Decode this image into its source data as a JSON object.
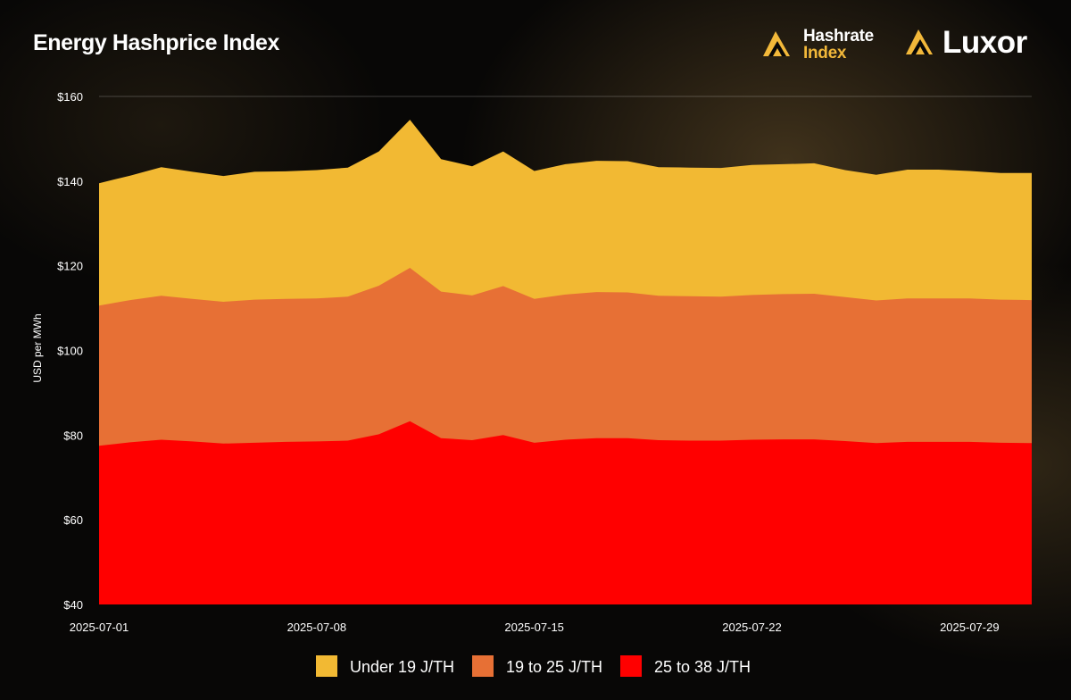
{
  "title": "Energy Hashprice Index",
  "brands": {
    "hashrate_index_line1": "Hashrate",
    "hashrate_index_line2": "Index",
    "luxor": "Luxor"
  },
  "colors": {
    "background": "#080706",
    "under_19": "#f2b933",
    "from_19_to_25": "#e77035",
    "from_25_to_38": "#ff0000",
    "brand_accent": "#f2b83a"
  },
  "chart_data": {
    "type": "area",
    "stacked": false,
    "title": "Energy Hashprice Index",
    "ylabel": "USD per MWh",
    "xlabel": "",
    "ylim": [
      40,
      160
    ],
    "yticks": [
      40,
      60,
      80,
      100,
      120,
      140,
      160
    ],
    "ytick_labels": [
      "$40",
      "$60",
      "$80",
      "$100",
      "$120",
      "$140",
      "$160"
    ],
    "xtick_labels": [
      "2025-07-01",
      "2025-07-08",
      "2025-07-15",
      "2025-07-22",
      "2025-07-29"
    ],
    "legend_position": "bottom-center",
    "grid": "top-line-only",
    "x": [
      "2025-07-01",
      "2025-07-02",
      "2025-07-03",
      "2025-07-04",
      "2025-07-05",
      "2025-07-06",
      "2025-07-07",
      "2025-07-08",
      "2025-07-09",
      "2025-07-10",
      "2025-07-11",
      "2025-07-12",
      "2025-07-13",
      "2025-07-14",
      "2025-07-15",
      "2025-07-16",
      "2025-07-17",
      "2025-07-18",
      "2025-07-19",
      "2025-07-20",
      "2025-07-21",
      "2025-07-22",
      "2025-07-23",
      "2025-07-24",
      "2025-07-25",
      "2025-07-26",
      "2025-07-27",
      "2025-07-28",
      "2025-07-29",
      "2025-07-30",
      "2025-07-31"
    ],
    "series": [
      {
        "name": "Under 19 J/TH",
        "color": "#f2b933",
        "values": [
          139.5,
          141.3,
          143.3,
          142.2,
          141.2,
          142.2,
          142.3,
          142.6,
          143.2,
          147.0,
          154.5,
          145.2,
          143.5,
          147.0,
          142.4,
          144.0,
          144.8,
          144.7,
          143.3,
          143.2,
          143.1,
          143.8,
          144.0,
          144.2,
          142.6,
          141.5,
          142.7,
          142.7,
          142.4,
          141.9,
          141.9
        ]
      },
      {
        "name": "19 to 25 J/TH",
        "color": "#e77035",
        "values": [
          110.6,
          111.9,
          112.9,
          112.2,
          111.5,
          112.0,
          112.2,
          112.3,
          112.7,
          115.3,
          119.5,
          113.9,
          113.0,
          115.2,
          112.2,
          113.2,
          113.8,
          113.7,
          112.9,
          112.8,
          112.7,
          113.1,
          113.3,
          113.4,
          112.6,
          111.8,
          112.3,
          112.3,
          112.3,
          112.0,
          111.9
        ]
      },
      {
        "name": "25 to 38 J/TH",
        "color": "#ff0000",
        "values": [
          77.5,
          78.3,
          78.9,
          78.5,
          78.0,
          78.2,
          78.4,
          78.5,
          78.7,
          80.2,
          83.3,
          79.3,
          78.8,
          80.0,
          78.2,
          78.9,
          79.3,
          79.3,
          78.8,
          78.7,
          78.7,
          78.9,
          79.0,
          79.0,
          78.6,
          78.1,
          78.4,
          78.4,
          78.4,
          78.2,
          78.1
        ]
      }
    ]
  }
}
